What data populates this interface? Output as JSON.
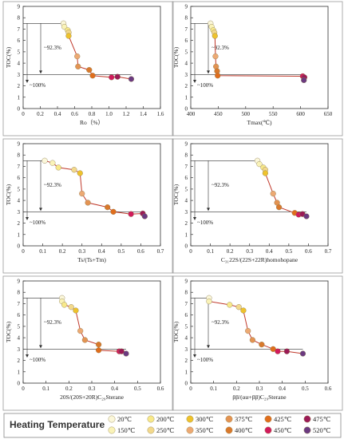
{
  "legend": {
    "title": "Heating Temperature",
    "entries": [
      {
        "label": "20℃",
        "color": "#fbf7da"
      },
      {
        "label": "150℃",
        "color": "#faf3b8"
      },
      {
        "label": "200℃",
        "color": "#f8e98a"
      },
      {
        "label": "250℃",
        "color": "#f3d98c"
      },
      {
        "label": "300℃",
        "color": "#eec22c"
      },
      {
        "label": "350℃",
        "color": "#eda973"
      },
      {
        "label": "375℃",
        "color": "#e39352"
      },
      {
        "label": "400℃",
        "color": "#d9792c"
      },
      {
        "label": "425℃",
        "color": "#e06d1c"
      },
      {
        "label": "450℃",
        "color": "#d11a5c"
      },
      {
        "label": "475℃",
        "color": "#9b1a56"
      },
      {
        "label": "520℃",
        "color": "#6b3a80"
      }
    ]
  },
  "line_color": "#c0392b",
  "chart_data": [
    {
      "type": "scatter",
      "xlabel": "Ro（%）",
      "ylabel": "TOC(%)",
      "xlim": [
        0,
        1.6
      ],
      "ylim": [
        0,
        9
      ],
      "xticks": [
        "0",
        "0.2",
        "0.4",
        "0.6",
        "0.8",
        "1.0",
        "1.2",
        "1.4",
        "1.6"
      ],
      "yticks": [
        "0",
        "1",
        "2",
        "3",
        "4",
        "5",
        "6",
        "7",
        "8",
        "9"
      ],
      "annotations": [
        "~92.3%",
        "~100%"
      ],
      "points": [
        {
          "x": 0.47,
          "y": 7.5,
          "temp": "20℃"
        },
        {
          "x": 0.48,
          "y": 7.2,
          "temp": "150℃"
        },
        {
          "x": 0.52,
          "y": 6.9,
          "temp": "200℃"
        },
        {
          "x": 0.53,
          "y": 6.7,
          "temp": "250℃"
        },
        {
          "x": 0.53,
          "y": 6.4,
          "temp": "300℃"
        },
        {
          "x": 0.63,
          "y": 4.6,
          "temp": "350℃"
        },
        {
          "x": 0.64,
          "y": 3.7,
          "temp": "375℃"
        },
        {
          "x": 0.77,
          "y": 3.4,
          "temp": "400℃"
        },
        {
          "x": 0.81,
          "y": 2.9,
          "temp": "425℃"
        },
        {
          "x": 1.03,
          "y": 2.75,
          "temp": "450℃"
        },
        {
          "x": 1.1,
          "y": 2.8,
          "temp": "475℃"
        },
        {
          "x": 1.26,
          "y": 2.6,
          "temp": "520℃"
        }
      ]
    },
    {
      "type": "scatter",
      "xlabel": "Tmax(℃)",
      "ylabel": "TOC(%)",
      "xlim": [
        400,
        650
      ],
      "ylim": [
        0,
        9
      ],
      "xticks": [
        "400",
        "450",
        "500",
        "550",
        "600",
        "650"
      ],
      "yticks": [
        "0",
        "1",
        "2",
        "3",
        "4",
        "5",
        "6",
        "7",
        "8",
        "9"
      ],
      "annotations": [
        "~92.3%",
        "~100%"
      ],
      "points": [
        {
          "x": 436,
          "y": 7.5,
          "temp": "20℃"
        },
        {
          "x": 438,
          "y": 7.2,
          "temp": "150℃"
        },
        {
          "x": 441,
          "y": 6.9,
          "temp": "200℃"
        },
        {
          "x": 443,
          "y": 6.7,
          "temp": "250℃"
        },
        {
          "x": 444,
          "y": 6.4,
          "temp": "300℃"
        },
        {
          "x": 445,
          "y": 4.6,
          "temp": "350℃"
        },
        {
          "x": 446,
          "y": 3.7,
          "temp": "375℃"
        },
        {
          "x": 448,
          "y": 3.3,
          "temp": "400℃"
        },
        {
          "x": 449,
          "y": 2.9,
          "temp": "425℃"
        },
        {
          "x": 604,
          "y": 2.85,
          "temp": "450℃"
        },
        {
          "x": 607,
          "y": 2.75,
          "temp": "475℃"
        },
        {
          "x": 606,
          "y": 2.5,
          "temp": "520℃"
        }
      ]
    },
    {
      "type": "scatter",
      "xlabel": "Ts/(Ts+Tm)",
      "ylabel": "TOC(%)",
      "xlim": [
        0,
        0.7
      ],
      "ylim": [
        0,
        9
      ],
      "xticks": [
        "0",
        "0.1",
        "0.2",
        "0.3",
        "0.4",
        "0.5",
        "0.6",
        "0.7"
      ],
      "yticks": [
        "0",
        "1",
        "2",
        "3",
        "4",
        "5",
        "6",
        "7",
        "8",
        "9"
      ],
      "annotations": [
        "~92.3%",
        "~100%"
      ],
      "points": [
        {
          "x": 0.11,
          "y": 7.5,
          "temp": "20℃"
        },
        {
          "x": 0.15,
          "y": 7.3,
          "temp": "150℃"
        },
        {
          "x": 0.18,
          "y": 6.9,
          "temp": "200℃"
        },
        {
          "x": 0.26,
          "y": 6.7,
          "temp": "250℃"
        },
        {
          "x": 0.29,
          "y": 6.4,
          "temp": "300℃"
        },
        {
          "x": 0.3,
          "y": 4.6,
          "temp": "350℃"
        },
        {
          "x": 0.33,
          "y": 3.8,
          "temp": "375℃"
        },
        {
          "x": 0.43,
          "y": 3.4,
          "temp": "400℃"
        },
        {
          "x": 0.46,
          "y": 3.0,
          "temp": "425℃"
        },
        {
          "x": 0.55,
          "y": 2.8,
          "temp": "450℃"
        },
        {
          "x": 0.61,
          "y": 2.85,
          "temp": "475℃"
        },
        {
          "x": 0.62,
          "y": 2.6,
          "temp": "520℃"
        }
      ]
    },
    {
      "type": "scatter",
      "xlabel": "C₃₁22S/(22S+22R)homohopane",
      "ylabel": "TOC(%)",
      "xlim": [
        0,
        0.7
      ],
      "ylim": [
        0,
        9
      ],
      "xticks": [
        "0",
        "0.1",
        "0.2",
        "0.3",
        "0.4",
        "0.5",
        "0.6",
        "0.7"
      ],
      "yticks": [
        "0",
        "1",
        "2",
        "3",
        "4",
        "5",
        "6",
        "7",
        "8",
        "9"
      ],
      "annotations": [
        "~92.3%",
        "~100%"
      ],
      "points": [
        {
          "x": 0.34,
          "y": 7.5,
          "temp": "20℃"
        },
        {
          "x": 0.35,
          "y": 7.2,
          "temp": "150℃"
        },
        {
          "x": 0.37,
          "y": 6.9,
          "temp": "200℃"
        },
        {
          "x": 0.38,
          "y": 6.7,
          "temp": "250℃"
        },
        {
          "x": 0.38,
          "y": 6.4,
          "temp": "300℃"
        },
        {
          "x": 0.42,
          "y": 4.6,
          "temp": "350℃"
        },
        {
          "x": 0.44,
          "y": 3.8,
          "temp": "375℃"
        },
        {
          "x": 0.45,
          "y": 3.4,
          "temp": "400℃"
        },
        {
          "x": 0.53,
          "y": 2.9,
          "temp": "425℃"
        },
        {
          "x": 0.55,
          "y": 2.75,
          "temp": "450℃"
        },
        {
          "x": 0.57,
          "y": 2.8,
          "temp": "475℃"
        },
        {
          "x": 0.59,
          "y": 2.6,
          "temp": "520℃"
        }
      ]
    },
    {
      "type": "scatter",
      "xlabel": "20S/(20S+20R)C₂₉Sterane",
      "ylabel": "TOC(%)",
      "xlim": [
        0,
        0.6
      ],
      "ylim": [
        0,
        9
      ],
      "xticks": [
        "0",
        "0.1",
        "0.2",
        "0.3",
        "0.4",
        "0.5",
        "0.6"
      ],
      "yticks": [
        "0",
        "1",
        "2",
        "3",
        "4",
        "5",
        "6",
        "7",
        "8",
        "9"
      ],
      "annotations": [
        "~92.3%",
        "~100%"
      ],
      "points": [
        {
          "x": 0.17,
          "y": 7.5,
          "temp": "20℃"
        },
        {
          "x": 0.17,
          "y": 7.2,
          "temp": "150℃"
        },
        {
          "x": 0.18,
          "y": 6.9,
          "temp": "200℃"
        },
        {
          "x": 0.21,
          "y": 6.7,
          "temp": "250℃"
        },
        {
          "x": 0.23,
          "y": 6.4,
          "temp": "300℃"
        },
        {
          "x": 0.25,
          "y": 4.6,
          "temp": "350℃"
        },
        {
          "x": 0.27,
          "y": 3.8,
          "temp": "375℃"
        },
        {
          "x": 0.33,
          "y": 3.4,
          "temp": "400℃"
        },
        {
          "x": 0.33,
          "y": 2.9,
          "temp": "425℃"
        },
        {
          "x": 0.42,
          "y": 2.8,
          "temp": "450℃"
        },
        {
          "x": 0.43,
          "y": 2.8,
          "temp": "475℃"
        },
        {
          "x": 0.45,
          "y": 2.6,
          "temp": "520℃"
        }
      ]
    },
    {
      "type": "scatter",
      "xlabel": "ββ/(αα+ββ)C₂₉Sterane",
      "ylabel": "TOC(%)",
      "xlim": [
        0,
        0.6
      ],
      "ylim": [
        0,
        9
      ],
      "xticks": [
        "0",
        "0.1",
        "0.2",
        "0.3",
        "0.4",
        "0.5",
        "0.6"
      ],
      "yticks": [
        "0",
        "1",
        "2",
        "3",
        "4",
        "5",
        "6",
        "7",
        "8",
        "9"
      ],
      "annotations": [
        "~92.3%",
        "~100%"
      ],
      "points": [
        {
          "x": 0.08,
          "y": 7.5,
          "temp": "20℃"
        },
        {
          "x": 0.08,
          "y": 7.2,
          "temp": "150℃"
        },
        {
          "x": 0.17,
          "y": 6.9,
          "temp": "200℃"
        },
        {
          "x": 0.21,
          "y": 6.7,
          "temp": "250℃"
        },
        {
          "x": 0.23,
          "y": 6.4,
          "temp": "300℃"
        },
        {
          "x": 0.25,
          "y": 4.6,
          "temp": "350℃"
        },
        {
          "x": 0.27,
          "y": 3.8,
          "temp": "375℃"
        },
        {
          "x": 0.31,
          "y": 3.4,
          "temp": "400℃"
        },
        {
          "x": 0.36,
          "y": 3.0,
          "temp": "425℃"
        },
        {
          "x": 0.38,
          "y": 2.8,
          "temp": "450℃"
        },
        {
          "x": 0.42,
          "y": 2.8,
          "temp": "475℃"
        },
        {
          "x": 0.49,
          "y": 2.6,
          "temp": "520℃"
        }
      ]
    }
  ]
}
